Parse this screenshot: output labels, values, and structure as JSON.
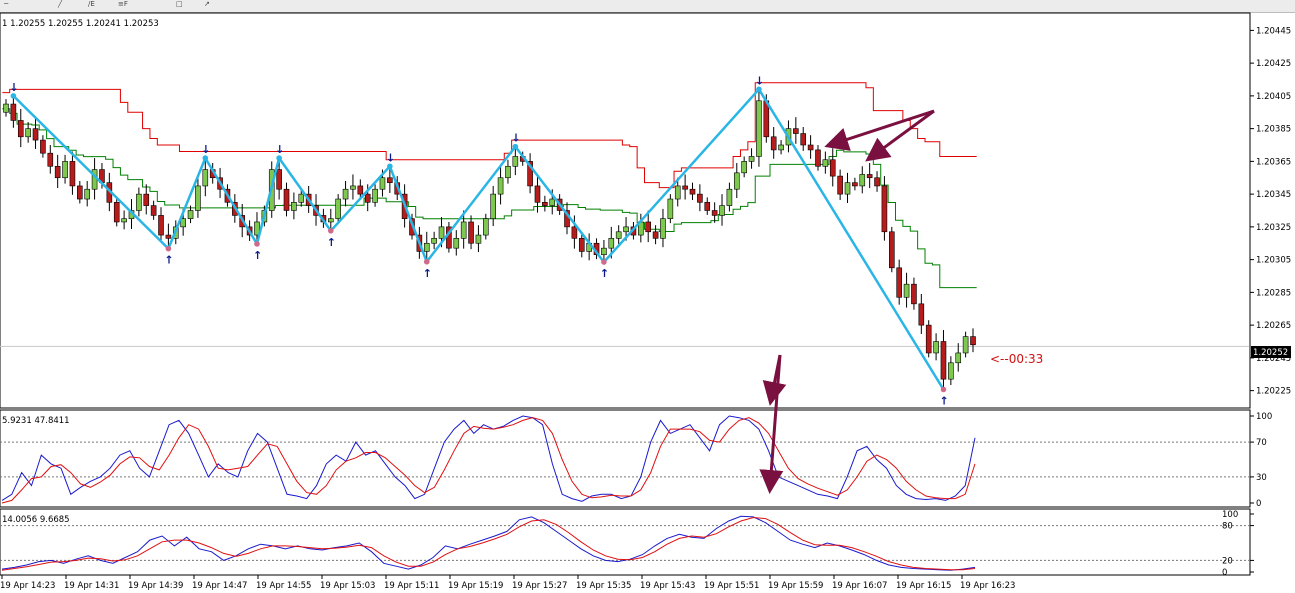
{
  "toolbar": {
    "icons": [
      "fibonacci-icon",
      "line-icon",
      "fibo-e-icon",
      "fibo-f-icon",
      "shapes-icon"
    ],
    "labels": [
      "E",
      "F"
    ]
  },
  "main_panel": {
    "ohlc_header": "1  1.20255 1.20255 1.20241 1.20253",
    "countdown": "<--00:33",
    "current_price": "1.20252"
  },
  "stoch1": {
    "header": "5.9231 47.8411",
    "levels": [
      "100",
      "70",
      "30",
      "0"
    ]
  },
  "stoch2": {
    "header": "14.0056 9.6685",
    "levels": [
      "100",
      "80",
      "20",
      "0"
    ]
  },
  "chart_data": [
    {
      "type": "candlestick",
      "panel": "price",
      "y_ticks": [
        "1.20445",
        "1.20425",
        "1.20405",
        "1.20385",
        "1.20365",
        "1.20345",
        "1.20325",
        "1.20305",
        "1.20285",
        "1.20265",
        "1.20245",
        "1.20225"
      ],
      "ylim": [
        1.20215,
        1.20455
      ],
      "x_labels": [
        "19 Apr 14:23",
        "19 Apr 14:31",
        "19 Apr 14:39",
        "19 Apr 14:47",
        "19 Apr 14:55",
        "19 Apr 15:03",
        "19 Apr 15:11",
        "19 Apr 15:19",
        "19 Apr 15:27",
        "19 Apr 15:35",
        "19 Apr 15:43",
        "19 Apr 15:51",
        "19 Apr 15:59",
        "19 Apr 16:07",
        "19 Apr 16:15",
        "19 Apr 16:23"
      ],
      "current_price": 1.20252,
      "colors": {
        "bull": "#7ec850",
        "bear": "#b71c1c",
        "zigzag": "#29b6e6",
        "zigzag_thin": "#d06a8a",
        "upper_band": "#e00000",
        "lower_band": "#008000",
        "arrow": "#0a1a8c",
        "annotation": "#7a1040"
      },
      "closes": [
        1.204,
        1.2039,
        1.2038,
        1.20385,
        1.20378,
        1.2037,
        1.20362,
        1.20355,
        1.20365,
        1.2035,
        1.20342,
        1.20348,
        1.2036,
        1.20352,
        1.2034,
        1.20328,
        1.2033,
        1.20335,
        1.20345,
        1.20338,
        1.20332,
        1.2032,
        1.20318,
        1.20325,
        1.2033,
        1.20335,
        1.2035,
        1.2036,
        1.20355,
        1.20348,
        1.2034,
        1.20332,
        1.20325,
        1.2032,
        1.20328,
        1.20335,
        1.2036,
        1.20348,
        1.20335,
        1.2034,
        1.20345,
        1.20338,
        1.20332,
        1.20328,
        1.2033,
        1.20342,
        1.20348,
        1.2035,
        1.20345,
        1.2034,
        1.20348,
        1.20355,
        1.20352,
        1.20345,
        1.2033,
        1.2032,
        1.2031,
        1.20315,
        1.20318,
        1.20325,
        1.20312,
        1.20318,
        1.20328,
        1.20315,
        1.2032,
        1.2033,
        1.20345,
        1.20355,
        1.20362,
        1.20368,
        1.20365,
        1.2035,
        1.2034,
        1.20338,
        1.20342,
        1.20335,
        1.20325,
        1.20318,
        1.2031,
        1.20315,
        1.20308,
        1.20312,
        1.20318,
        1.20322,
        1.20325,
        1.2032,
        1.20328,
        1.20322,
        1.20318,
        1.2033,
        1.20342,
        1.2035,
        1.20348,
        1.20345,
        1.2034,
        1.20335,
        1.20332,
        1.20338,
        1.20348,
        1.20358,
        1.20365,
        1.20368,
        1.20402,
        1.2038,
        1.20372,
        1.20375,
        1.20385,
        1.20382,
        1.20375,
        1.20372,
        1.20362,
        1.20366,
        1.20356,
        1.20345,
        1.20352,
        1.2035,
        1.20357,
        1.20355,
        1.2035,
        1.20322,
        1.203,
        1.20282,
        1.2029,
        1.20278,
        1.20265,
        1.20248,
        1.20255,
        1.20232,
        1.20242,
        1.20248,
        1.20258,
        1.20253
      ]
    },
    {
      "type": "line",
      "panel": "stochastic_1",
      "ylim": [
        0,
        100
      ],
      "levels": [
        70,
        30
      ],
      "series": [
        {
          "values": [
            3,
            10,
            35,
            20,
            55,
            45,
            40,
            10,
            18,
            25,
            30,
            40,
            55,
            60,
            40,
            30,
            60,
            90,
            95,
            80,
            55,
            30,
            45,
            35,
            30,
            60,
            80,
            70,
            40,
            10,
            8,
            5,
            20,
            45,
            55,
            48,
            70,
            55,
            60,
            45,
            30,
            20,
            5,
            10,
            40,
            70,
            85,
            95,
            80,
            90,
            85,
            88,
            95,
            100,
            98,
            90,
            45,
            10,
            5,
            2,
            8,
            10,
            10,
            5,
            8,
            30,
            70,
            95,
            80,
            85,
            90,
            75,
            60,
            90,
            100,
            98,
            95,
            85,
            60,
            30,
            25,
            20,
            15,
            10,
            8,
            5,
            30,
            60,
            65,
            50,
            40,
            20,
            10,
            5,
            4,
            5,
            3,
            8,
            20,
            75
          ]
        },
        {
          "values": [
            0,
            3,
            15,
            28,
            30,
            42,
            44,
            35,
            22,
            18,
            24,
            32,
            45,
            53,
            52,
            42,
            38,
            55,
            75,
            90,
            85,
            65,
            40,
            38,
            40,
            42,
            55,
            68,
            65,
            45,
            25,
            12,
            10,
            20,
            38,
            48,
            52,
            58,
            58,
            52,
            42,
            32,
            20,
            12,
            18,
            38,
            60,
            80,
            88,
            86,
            85,
            87,
            90,
            95,
            98,
            95,
            80,
            50,
            25,
            10,
            6,
            7,
            9,
            8,
            8,
            15,
            35,
            65,
            85,
            85,
            85,
            82,
            72,
            70,
            85,
            95,
            98,
            92,
            80,
            60,
            40,
            28,
            22,
            17,
            13,
            9,
            15,
            30,
            48,
            55,
            50,
            40,
            25,
            15,
            8,
            6,
            5,
            5,
            10,
            45
          ]
        }
      ]
    },
    {
      "type": "line",
      "panel": "stochastic_2",
      "ylim": [
        0,
        100
      ],
      "levels": [
        80,
        20
      ],
      "series": [
        {
          "values": [
            5,
            8,
            12,
            18,
            20,
            15,
            22,
            28,
            20,
            15,
            25,
            35,
            55,
            62,
            45,
            60,
            40,
            35,
            20,
            28,
            40,
            48,
            45,
            40,
            45,
            40,
            38,
            42,
            45,
            50,
            35,
            15,
            10,
            5,
            12,
            25,
            45,
            40,
            48,
            55,
            62,
            70,
            90,
            95,
            85,
            70,
            55,
            40,
            28,
            20,
            18,
            22,
            30,
            45,
            58,
            65,
            60,
            58,
            75,
            88,
            96,
            95,
            85,
            70,
            55,
            48,
            42,
            50,
            45,
            38,
            30,
            20,
            12,
            8,
            6,
            5,
            4,
            3,
            5,
            8
          ]
        },
        {
          "values": [
            3,
            6,
            9,
            13,
            17,
            18,
            20,
            24,
            23,
            19,
            21,
            28,
            40,
            52,
            55,
            55,
            50,
            42,
            32,
            27,
            32,
            40,
            45,
            45,
            44,
            42,
            40,
            41,
            43,
            46,
            42,
            28,
            17,
            10,
            10,
            17,
            30,
            40,
            44,
            50,
            57,
            65,
            78,
            88,
            90,
            82,
            68,
            52,
            38,
            28,
            22,
            21,
            25,
            35,
            48,
            58,
            62,
            60,
            66,
            78,
            88,
            94,
            92,
            82,
            68,
            55,
            47,
            46,
            46,
            42,
            35,
            27,
            18,
            12,
            8,
            6,
            5,
            4,
            4,
            6
          ]
        }
      ]
    }
  ]
}
